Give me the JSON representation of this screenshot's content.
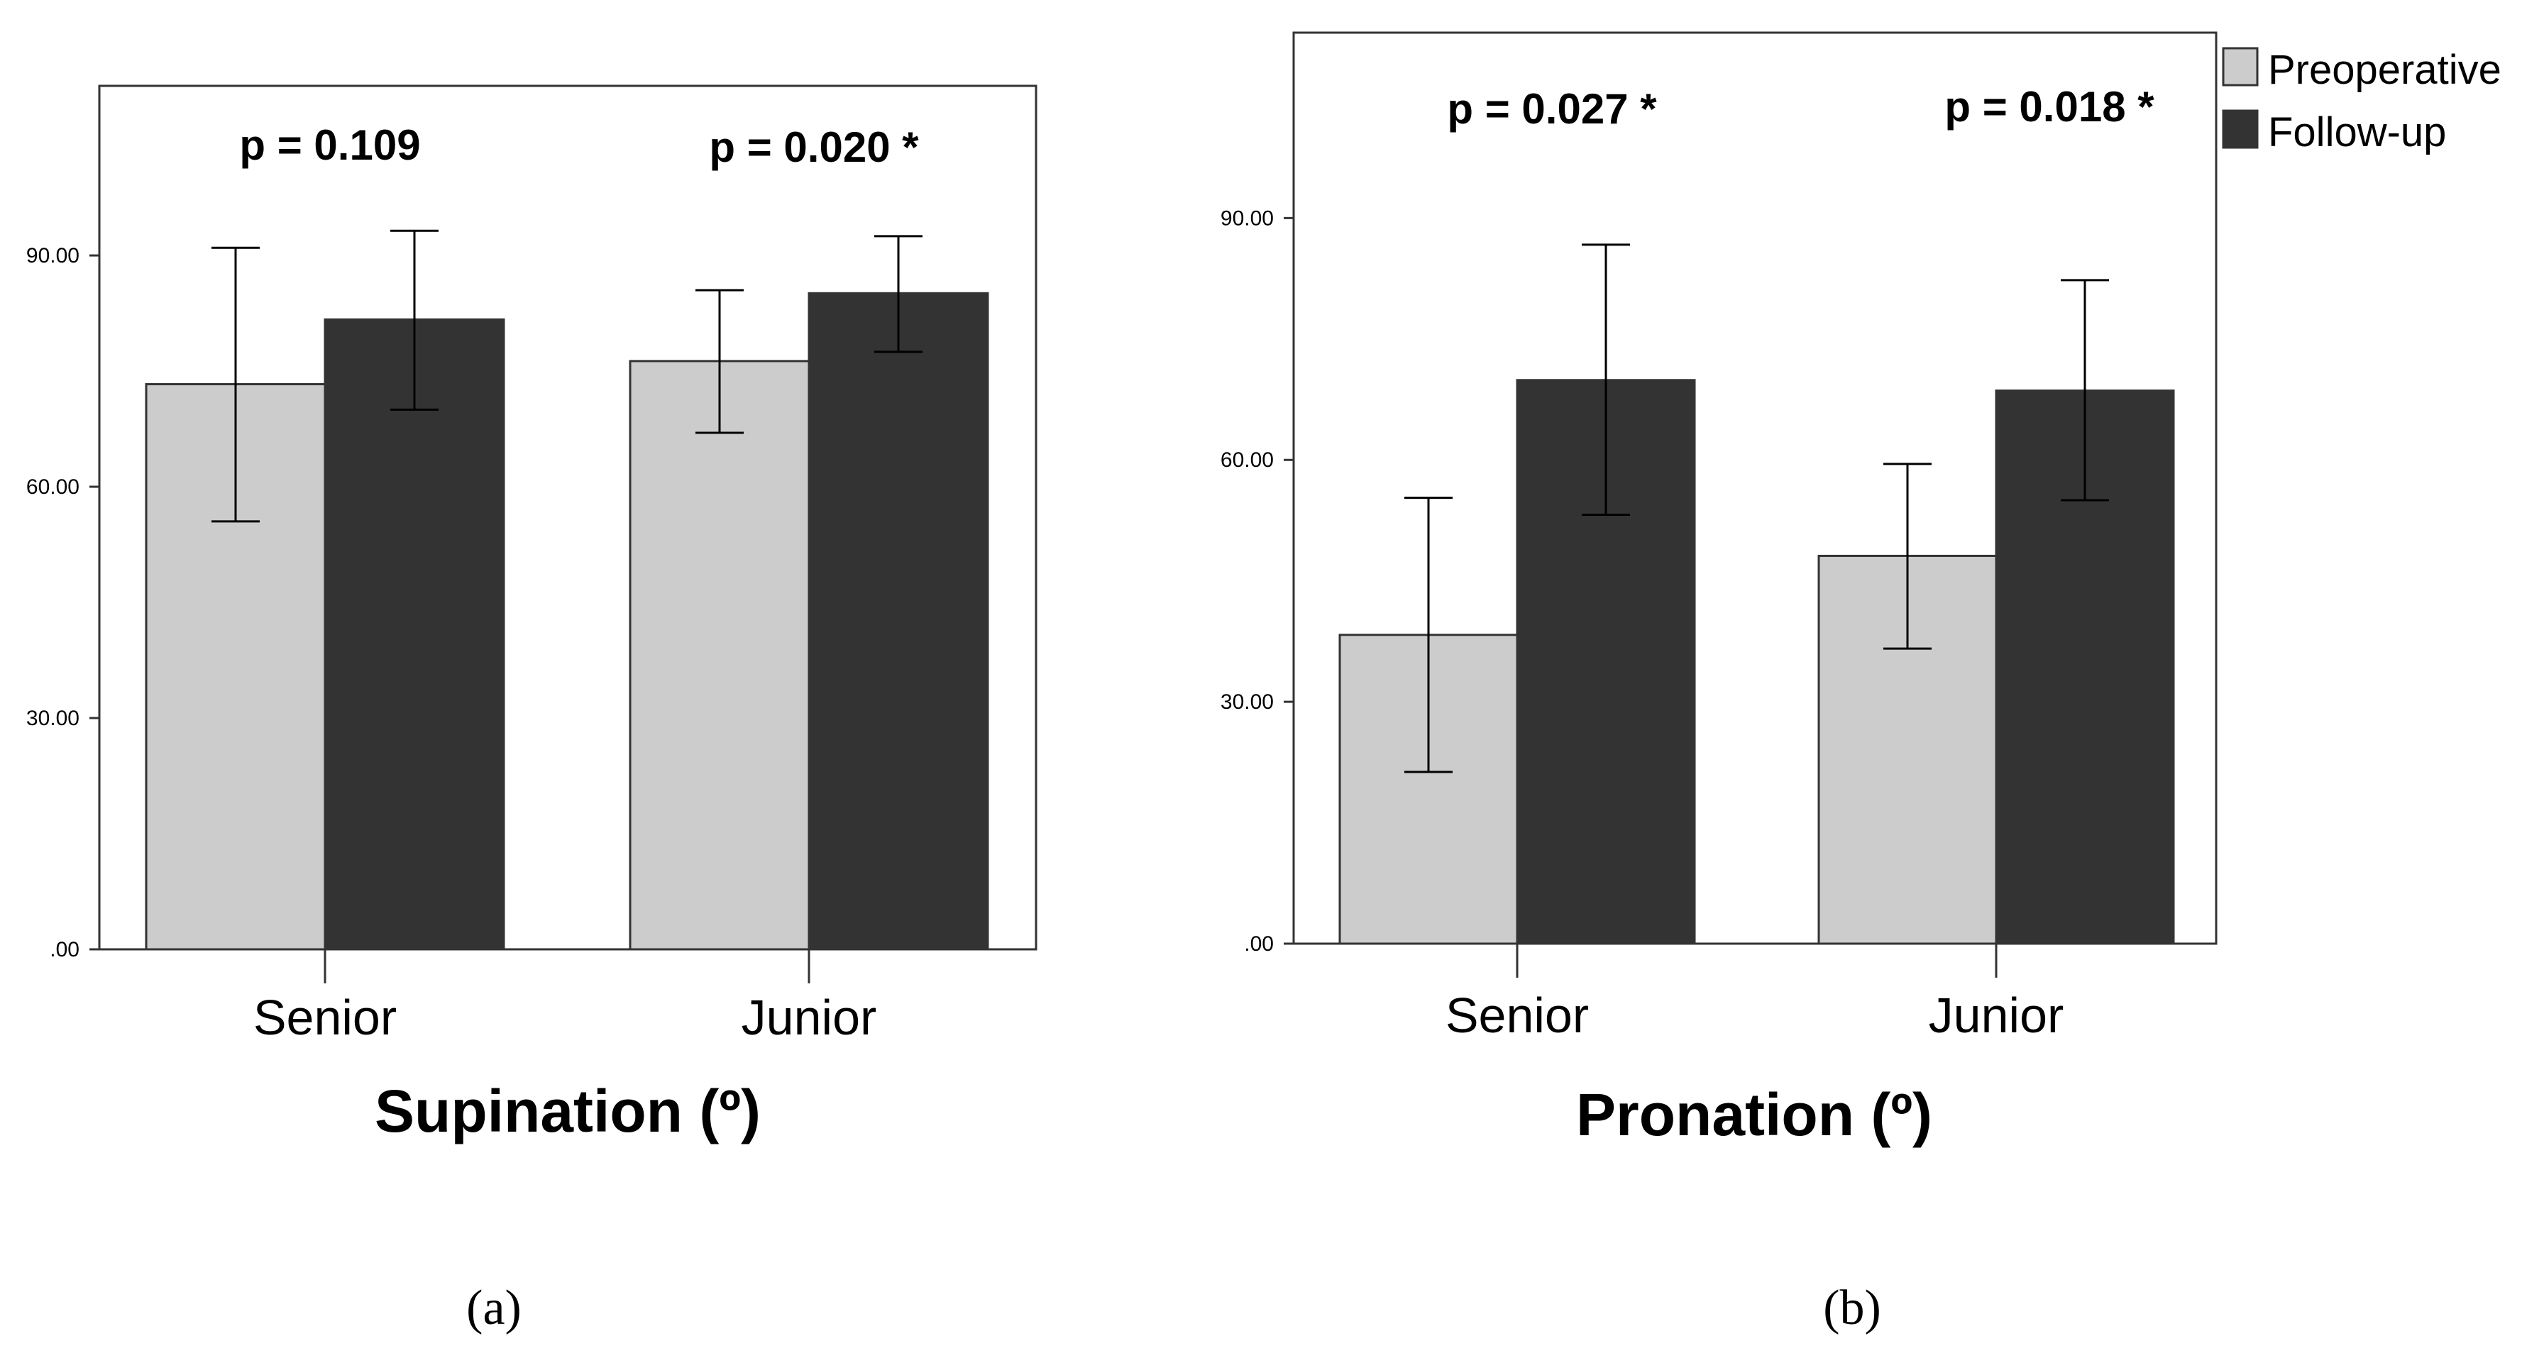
{
  "colors": {
    "preoperative": "#cccccc",
    "followup": "#333333",
    "axis": "#333333",
    "text": "#000000"
  },
  "legend": {
    "items": [
      {
        "label": "Preoperative",
        "color": "#cccccc"
      },
      {
        "label": "Follow-up",
        "color": "#333333"
      }
    ],
    "placement": "right of panel b, top"
  },
  "chart_data": [
    {
      "type": "bar",
      "panel_label": "(a)",
      "title": "",
      "xlabel": "Supination (º)",
      "ylabel": "",
      "categories": [
        "Senior",
        "Junior"
      ],
      "ylim": [
        0,
        112
      ],
      "yticks": [
        0,
        30,
        60,
        90
      ],
      "ytick_labels": [
        ".00",
        "30.00",
        "60.00",
        "90.00"
      ],
      "grid": false,
      "series": [
        {
          "name": "Preoperative",
          "values": [
            73.3,
            76.3
          ],
          "err_low": [
            55.5,
            67.0
          ],
          "err_high": [
            91.0,
            85.5
          ]
        },
        {
          "name": "Follow-up",
          "values": [
            81.7,
            85.1
          ],
          "err_low": [
            70.0,
            77.5
          ],
          "err_high": [
            93.2,
            92.5
          ]
        }
      ],
      "annotations": [
        "p = 0.109",
        "p = 0.020 *"
      ]
    },
    {
      "type": "bar",
      "panel_label": "(b)",
      "title": "",
      "xlabel": "Pronation (º)",
      "ylabel": "",
      "categories": [
        "Senior",
        "Junior"
      ],
      "ylim": [
        0,
        113
      ],
      "yticks": [
        0,
        30,
        60,
        90
      ],
      "ytick_labels": [
        ".00",
        "30.00",
        "60.00",
        "90.00"
      ],
      "grid": false,
      "series": [
        {
          "name": "Preoperative",
          "values": [
            38.3,
            48.1
          ],
          "err_low": [
            21.3,
            36.6
          ],
          "err_high": [
            55.3,
            59.5
          ]
        },
        {
          "name": "Follow-up",
          "values": [
            69.9,
            68.6
          ],
          "err_low": [
            53.2,
            55.0
          ],
          "err_high": [
            86.7,
            82.3
          ]
        }
      ],
      "annotations": [
        "p = 0.027 *",
        "p = 0.018 *"
      ]
    }
  ]
}
